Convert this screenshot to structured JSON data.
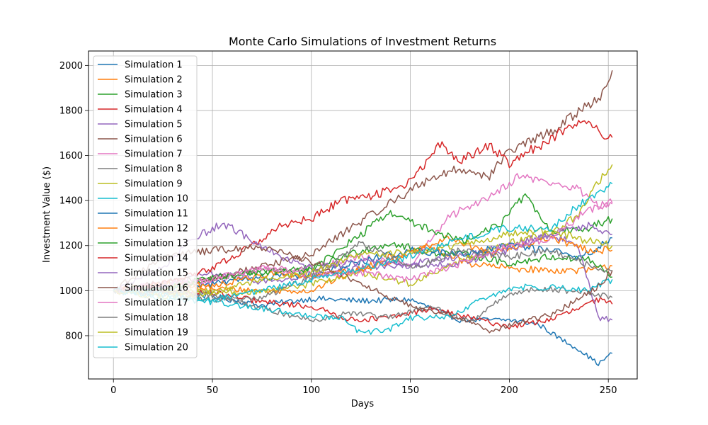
{
  "chart_data": {
    "type": "line",
    "title": "Monte Carlo Simulations of Investment Returns",
    "xlabel": "Days",
    "ylabel": "Investment Value ($)",
    "xlim": [
      -12.6,
      264.6
    ],
    "ylim": [
      608,
      2064
    ],
    "xticks": [
      0,
      50,
      100,
      150,
      200,
      250
    ],
    "yticks": [
      800,
      1000,
      1200,
      1400,
      1600,
      1800,
      2000
    ],
    "grid": true,
    "legend": "upper left",
    "series": [
      {
        "name": "Simulation 1",
        "color": "#1f77b4",
        "keypoints": [
          [
            0,
            1000
          ],
          [
            25,
            1005
          ],
          [
            50,
            975
          ],
          [
            75,
            935
          ],
          [
            100,
            965
          ],
          [
            125,
            955
          ],
          [
            150,
            960
          ],
          [
            175,
            870
          ],
          [
            200,
            870
          ],
          [
            215,
            850
          ],
          [
            225,
            790
          ],
          [
            235,
            740
          ],
          [
            245,
            675
          ],
          [
            252,
            722
          ]
        ]
      },
      {
        "name": "Simulation 2",
        "color": "#ff7f0e",
        "keypoints": [
          [
            0,
            1000
          ],
          [
            25,
            1020
          ],
          [
            50,
            1010
          ],
          [
            75,
            1000
          ],
          [
            100,
            1000
          ],
          [
            120,
            1080
          ],
          [
            140,
            1150
          ],
          [
            160,
            1190
          ],
          [
            180,
            1120
          ],
          [
            200,
            1100
          ],
          [
            220,
            1090
          ],
          [
            240,
            1090
          ],
          [
            252,
            1110
          ]
        ]
      },
      {
        "name": "Simulation 3",
        "color": "#2ca02c",
        "keypoints": [
          [
            0,
            1000
          ],
          [
            25,
            1020
          ],
          [
            50,
            1050
          ],
          [
            75,
            1090
          ],
          [
            100,
            1100
          ],
          [
            125,
            1180
          ],
          [
            140,
            1210
          ],
          [
            160,
            1170
          ],
          [
            180,
            1160
          ],
          [
            200,
            1120
          ],
          [
            220,
            1150
          ],
          [
            240,
            1140
          ],
          [
            252,
            1060
          ]
        ]
      },
      {
        "name": "Simulation 4",
        "color": "#d62728",
        "keypoints": [
          [
            0,
            1000
          ],
          [
            25,
            995
          ],
          [
            50,
            990
          ],
          [
            75,
            950
          ],
          [
            100,
            930
          ],
          [
            120,
            870
          ],
          [
            140,
            880
          ],
          [
            160,
            920
          ],
          [
            180,
            880
          ],
          [
            200,
            840
          ],
          [
            220,
            870
          ],
          [
            235,
            920
          ],
          [
            245,
            960
          ],
          [
            252,
            940
          ]
        ]
      },
      {
        "name": "Simulation 5",
        "color": "#9467bd",
        "keypoints": [
          [
            0,
            1000
          ],
          [
            25,
            1020
          ],
          [
            50,
            1080
          ],
          [
            75,
            1040
          ],
          [
            100,
            1060
          ],
          [
            125,
            1100
          ],
          [
            150,
            1120
          ],
          [
            175,
            1150
          ],
          [
            200,
            1200
          ],
          [
            220,
            1250
          ],
          [
            235,
            1200
          ],
          [
            245,
            880
          ],
          [
            252,
            870
          ]
        ]
      },
      {
        "name": "Simulation 6",
        "color": "#8c564b",
        "keypoints": [
          [
            0,
            1000
          ],
          [
            25,
            1040
          ],
          [
            50,
            1050
          ],
          [
            75,
            1110
          ],
          [
            100,
            1160
          ],
          [
            120,
            1280
          ],
          [
            140,
            1390
          ],
          [
            160,
            1500
          ],
          [
            175,
            1540
          ],
          [
            190,
            1510
          ],
          [
            200,
            1620
          ],
          [
            210,
            1660
          ],
          [
            220,
            1700
          ],
          [
            230,
            1760
          ],
          [
            240,
            1830
          ],
          [
            248,
            1880
          ],
          [
            252,
            1978
          ]
        ]
      },
      {
        "name": "Simulation 7",
        "color": "#e377c2",
        "keypoints": [
          [
            0,
            1000
          ],
          [
            25,
            1030
          ],
          [
            50,
            1040
          ],
          [
            75,
            1100
          ],
          [
            100,
            1100
          ],
          [
            125,
            1150
          ],
          [
            150,
            1110
          ],
          [
            170,
            1330
          ],
          [
            190,
            1420
          ],
          [
            205,
            1510
          ],
          [
            220,
            1480
          ],
          [
            235,
            1450
          ],
          [
            245,
            1380
          ],
          [
            252,
            1390
          ]
        ]
      },
      {
        "name": "Simulation 8",
        "color": "#7f7f7f",
        "keypoints": [
          [
            0,
            1000
          ],
          [
            25,
            990
          ],
          [
            50,
            980
          ],
          [
            75,
            920
          ],
          [
            100,
            870
          ],
          [
            120,
            900
          ],
          [
            140,
            880
          ],
          [
            160,
            930
          ],
          [
            180,
            860
          ],
          [
            200,
            990
          ],
          [
            220,
            1010
          ],
          [
            240,
            990
          ],
          [
            252,
            970
          ]
        ]
      },
      {
        "name": "Simulation 9",
        "color": "#bcbd22",
        "keypoints": [
          [
            0,
            1000
          ],
          [
            25,
            990
          ],
          [
            50,
            1000
          ],
          [
            75,
            990
          ],
          [
            100,
            1030
          ],
          [
            125,
            1080
          ],
          [
            150,
            1030
          ],
          [
            175,
            1130
          ],
          [
            200,
            1210
          ],
          [
            220,
            1250
          ],
          [
            235,
            1340
          ],
          [
            245,
            1480
          ],
          [
            252,
            1560
          ]
        ]
      },
      {
        "name": "Simulation 10",
        "color": "#17becf",
        "keypoints": [
          [
            0,
            1000
          ],
          [
            25,
            970
          ],
          [
            50,
            950
          ],
          [
            75,
            920
          ],
          [
            100,
            890
          ],
          [
            115,
            880
          ],
          [
            125,
            810
          ],
          [
            140,
            830
          ],
          [
            150,
            880
          ],
          [
            170,
            880
          ],
          [
            190,
            980
          ],
          [
            210,
            1020
          ],
          [
            230,
            1010
          ],
          [
            240,
            1000
          ],
          [
            252,
            1050
          ]
        ]
      },
      {
        "name": "Simulation 11",
        "color": "#1f77b4",
        "keypoints": [
          [
            0,
            1000
          ],
          [
            25,
            1010
          ],
          [
            50,
            1030
          ],
          [
            75,
            1060
          ],
          [
            100,
            1070
          ],
          [
            125,
            1130
          ],
          [
            150,
            1180
          ],
          [
            175,
            1160
          ],
          [
            200,
            1200
          ],
          [
            220,
            1180
          ],
          [
            235,
            1150
          ],
          [
            245,
            1190
          ],
          [
            252,
            1235
          ]
        ]
      },
      {
        "name": "Simulation 12",
        "color": "#ff7f0e",
        "keypoints": [
          [
            0,
            1000
          ],
          [
            25,
            1030
          ],
          [
            50,
            1020
          ],
          [
            75,
            1070
          ],
          [
            100,
            1070
          ],
          [
            125,
            1090
          ],
          [
            150,
            1160
          ],
          [
            170,
            1240
          ],
          [
            190,
            1160
          ],
          [
            205,
            1200
          ],
          [
            220,
            1230
          ],
          [
            240,
            1180
          ],
          [
            252,
            1180
          ]
        ]
      },
      {
        "name": "Simulation 13",
        "color": "#2ca02c",
        "keypoints": [
          [
            0,
            1000
          ],
          [
            25,
            1010
          ],
          [
            50,
            1060
          ],
          [
            75,
            1080
          ],
          [
            100,
            1090
          ],
          [
            125,
            1250
          ],
          [
            140,
            1350
          ],
          [
            155,
            1290
          ],
          [
            175,
            1220
          ],
          [
            195,
            1290
          ],
          [
            208,
            1430
          ],
          [
            220,
            1270
          ],
          [
            240,
            1280
          ],
          [
            252,
            1320
          ]
        ]
      },
      {
        "name": "Simulation 14",
        "color": "#d62728",
        "keypoints": [
          [
            0,
            1000
          ],
          [
            25,
            1030
          ],
          [
            50,
            1100
          ],
          [
            70,
            1200
          ],
          [
            85,
            1290
          ],
          [
            100,
            1320
          ],
          [
            115,
            1400
          ],
          [
            130,
            1420
          ],
          [
            150,
            1480
          ],
          [
            165,
            1650
          ],
          [
            175,
            1570
          ],
          [
            190,
            1650
          ],
          [
            200,
            1560
          ],
          [
            210,
            1620
          ],
          [
            220,
            1660
          ],
          [
            230,
            1740
          ],
          [
            240,
            1730
          ],
          [
            252,
            1680
          ]
        ]
      },
      {
        "name": "Simulation 15",
        "color": "#9467bd",
        "keypoints": [
          [
            0,
            1000
          ],
          [
            25,
            1100
          ],
          [
            40,
            1230
          ],
          [
            55,
            1300
          ],
          [
            75,
            1200
          ],
          [
            90,
            1130
          ],
          [
            100,
            1100
          ],
          [
            125,
            1130
          ],
          [
            150,
            1110
          ],
          [
            175,
            1120
          ],
          [
            200,
            1180
          ],
          [
            220,
            1250
          ],
          [
            240,
            1290
          ],
          [
            252,
            1250
          ]
        ]
      },
      {
        "name": "Simulation 16",
        "color": "#8c564b",
        "keypoints": [
          [
            0,
            1000
          ],
          [
            25,
            1150
          ],
          [
            50,
            1180
          ],
          [
            75,
            1190
          ],
          [
            100,
            1130
          ],
          [
            125,
            1030
          ],
          [
            150,
            930
          ],
          [
            175,
            880
          ],
          [
            190,
            820
          ],
          [
            205,
            860
          ],
          [
            220,
            890
          ],
          [
            235,
            960
          ],
          [
            245,
            1020
          ],
          [
            252,
            1090
          ]
        ]
      },
      {
        "name": "Simulation 17",
        "color": "#e377c2",
        "keypoints": [
          [
            0,
            1000
          ],
          [
            25,
            1030
          ],
          [
            50,
            1050
          ],
          [
            75,
            1100
          ],
          [
            100,
            1070
          ],
          [
            125,
            1080
          ],
          [
            150,
            1050
          ],
          [
            175,
            1120
          ],
          [
            200,
            1200
          ],
          [
            220,
            1230
          ],
          [
            240,
            1360
          ],
          [
            252,
            1385
          ]
        ]
      },
      {
        "name": "Simulation 18",
        "color": "#7f7f7f",
        "keypoints": [
          [
            0,
            1000
          ],
          [
            25,
            990
          ],
          [
            50,
            960
          ],
          [
            75,
            970
          ],
          [
            100,
            1060
          ],
          [
            125,
            1210
          ],
          [
            150,
            1100
          ],
          [
            175,
            1180
          ],
          [
            200,
            1150
          ],
          [
            220,
            1180
          ],
          [
            235,
            1130
          ],
          [
            245,
            1100
          ],
          [
            252,
            1090
          ]
        ]
      },
      {
        "name": "Simulation 19",
        "color": "#bcbd22",
        "keypoints": [
          [
            0,
            1000
          ],
          [
            25,
            970
          ],
          [
            50,
            990
          ],
          [
            75,
            1050
          ],
          [
            100,
            1080
          ],
          [
            125,
            1160
          ],
          [
            150,
            1170
          ],
          [
            175,
            1200
          ],
          [
            200,
            1250
          ],
          [
            220,
            1270
          ],
          [
            240,
            1220
          ],
          [
            252,
            1200
          ]
        ]
      },
      {
        "name": "Simulation 20",
        "color": "#17becf",
        "keypoints": [
          [
            0,
            1000
          ],
          [
            25,
            980
          ],
          [
            50,
            960
          ],
          [
            75,
            1000
          ],
          [
            100,
            1050
          ],
          [
            125,
            1100
          ],
          [
            150,
            1150
          ],
          [
            175,
            1230
          ],
          [
            200,
            1280
          ],
          [
            220,
            1270
          ],
          [
            235,
            1380
          ],
          [
            245,
            1440
          ],
          [
            252,
            1475
          ]
        ]
      }
    ]
  }
}
